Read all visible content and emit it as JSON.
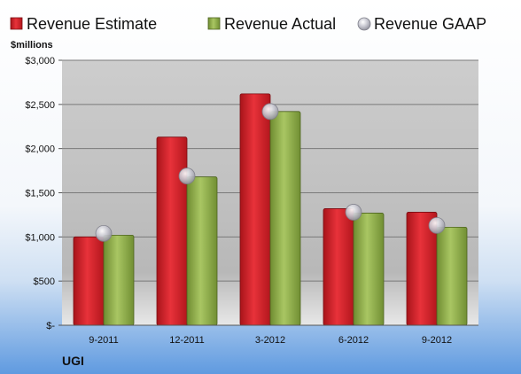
{
  "chart_data": {
    "type": "bar",
    "company": "UGI",
    "unit_label": "$millions",
    "categories": [
      "9-2011",
      "12-2011",
      "3-2012",
      "6-2012",
      "9-2012"
    ],
    "series": [
      {
        "name": "Revenue Estimate",
        "kind": "bar",
        "color": "#d11f27",
        "values": [
          1000,
          2130,
          2620,
          1320,
          1280
        ]
      },
      {
        "name": "Revenue Actual",
        "kind": "bar",
        "color": "#8fae48",
        "values": [
          1020,
          1680,
          2420,
          1270,
          1110
        ]
      },
      {
        "name": "Revenue GAAP",
        "kind": "marker",
        "color": "#c8c8d0",
        "values": [
          1040,
          1690,
          2420,
          1280,
          1130
        ]
      }
    ],
    "ylim": [
      0,
      3000
    ],
    "y_ticks": [
      0,
      500,
      1000,
      1500,
      2000,
      2500,
      3000
    ],
    "y_tick_labels": [
      "$-",
      "$500",
      "$1,000",
      "$1,500",
      "$2,000",
      "$2,500",
      "$3,000"
    ],
    "grid": true,
    "legend": "top"
  }
}
